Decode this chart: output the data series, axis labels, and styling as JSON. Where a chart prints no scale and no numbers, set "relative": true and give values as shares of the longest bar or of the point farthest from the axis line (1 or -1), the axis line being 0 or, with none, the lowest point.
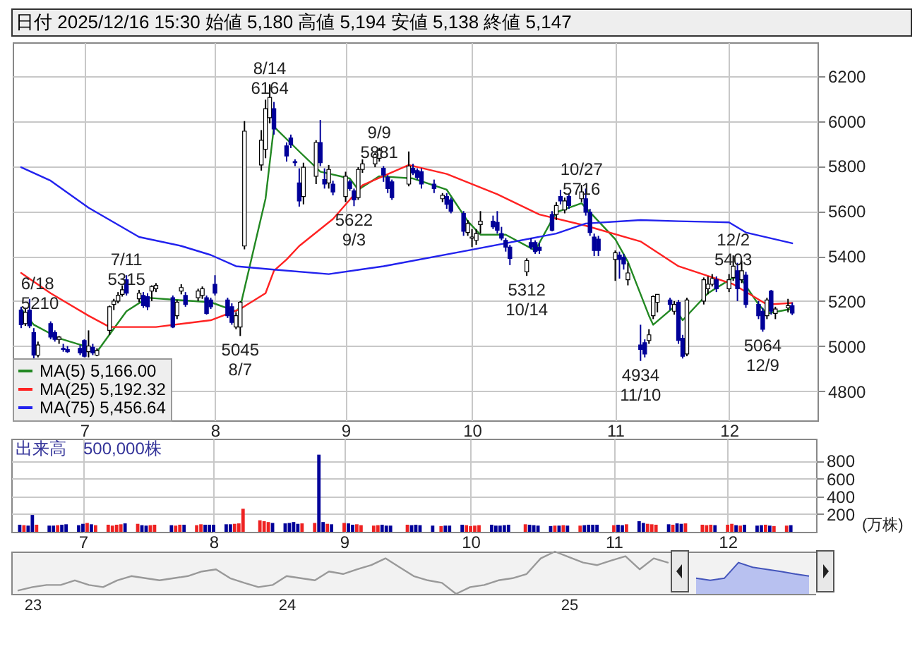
{
  "chart_data": [
    {
      "type": "candlestick",
      "title": "日付 2025/12/16 15:30 始値 5,180 高値 5,194 安値 5,138 終値 5,147",
      "xlim": [
        "2025-06-14",
        "2025-12-22"
      ],
      "ylim": [
        4670,
        6350
      ],
      "yticks": [
        4800,
        5000,
        5200,
        5400,
        5600,
        5800,
        6000,
        6200
      ],
      "xticks": [
        {
          "value": "2025-07-01",
          "label": "7"
        },
        {
          "value": "2025-08-01",
          "label": "8"
        },
        {
          "value": "2025-09-01",
          "label": "9"
        },
        {
          "value": "2025-10-01",
          "label": "10"
        },
        {
          "value": "2025-11-04",
          "label": "11"
        },
        {
          "value": "2025-12-01",
          "label": "12"
        }
      ],
      "grid": true,
      "legend": "bottom left",
      "series": [
        {
          "type": "line",
          "name": "MA(5) 5,166.00",
          "color": "#228822",
          "x": [
            "2025-06-16",
            "2025-06-19",
            "2025-06-25",
            "2025-07-02",
            "2025-07-04",
            "2025-07-11",
            "2025-07-16",
            "2025-07-23",
            "2025-07-31",
            "2025-08-06",
            "2025-08-07",
            "2025-08-13",
            "2025-08-15",
            "2025-08-21",
            "2025-08-26",
            "2025-09-02",
            "2025-09-04",
            "2025-09-09",
            "2025-09-17",
            "2025-09-25",
            "2025-09-30",
            "2025-10-03",
            "2025-10-09",
            "2025-10-16",
            "2025-10-21",
            "2025-10-27",
            "2025-11-04",
            "2025-11-07",
            "2025-11-12",
            "2025-11-13",
            "2025-11-18",
            "2025-11-20",
            "2025-11-26",
            "2025-12-02",
            "2025-12-04",
            "2025-12-08",
            "2025-12-10",
            "2025-12-16"
          ],
          "values": [
            5165,
            5095,
            5035,
            4995,
            4975,
            5155,
            5215,
            5205,
            5195,
            5155,
            5175,
            5655,
            5975,
            5865,
            5775,
            5745,
            5695,
            5755,
            5745,
            5695,
            5555,
            5495,
            5495,
            5425,
            5595,
            5635,
            5475,
            5375,
            5135,
            5095,
            5175,
            5115,
            5235,
            5305,
            5295,
            5185,
            5145,
            5166
          ]
        },
        {
          "type": "line",
          "name": "MA(25) 5,192.32",
          "color": "#ff2222",
          "x": [
            "2025-06-16",
            "2025-06-23",
            "2025-07-02",
            "2025-07-07",
            "2025-07-18",
            "2025-07-31",
            "2025-08-07",
            "2025-08-13",
            "2025-08-15",
            "2025-08-18",
            "2025-08-21",
            "2025-08-29",
            "2025-09-05",
            "2025-09-16",
            "2025-09-25",
            "2025-10-07",
            "2025-10-17",
            "2025-10-28",
            "2025-11-10",
            "2025-11-19",
            "2025-12-02",
            "2025-12-10",
            "2025-12-16"
          ],
          "values": [
            5325,
            5235,
            5135,
            5085,
            5085,
            5115,
            5165,
            5235,
            5335,
            5385,
            5445,
            5565,
            5715,
            5805,
            5765,
            5675,
            5585,
            5535,
            5465,
            5355,
            5275,
            5185,
            5192
          ]
        },
        {
          "type": "line",
          "name": "MA(75) 5,456.64",
          "color": "#2222ee",
          "x": [
            "2025-06-16",
            "2025-06-23",
            "2025-07-02",
            "2025-07-14",
            "2025-07-24",
            "2025-07-31",
            "2025-08-06",
            "2025-08-15",
            "2025-08-28",
            "2025-09-10",
            "2025-09-30",
            "2025-10-21",
            "2025-10-28",
            "2025-11-10",
            "2025-11-19",
            "2025-12-01",
            "2025-12-05",
            "2025-12-16"
          ],
          "values": [
            5795,
            5735,
            5615,
            5485,
            5445,
            5405,
            5355,
            5340,
            5320,
            5355,
            5425,
            5500,
            5545,
            5560,
            5555,
            5550,
            5505,
            5457
          ]
        },
        {
          "type": "candlestick",
          "colors": [
            "#000099",
            "#ffffff",
            "#000099",
            "#000099",
            "#ffffff",
            "#000099",
            "#000099",
            "#ffffff",
            "#000099",
            "#000099",
            "#000099",
            "#000099",
            "#ffffff",
            "#000099",
            "#ffffff",
            "#ffffff",
            "#ffffff",
            "#ffffff",
            "#ffffff",
            "#000099",
            "#ffffff",
            "#000099",
            "#000099",
            "#ffffff",
            "#ffffff",
            "#000099",
            "#ffffff",
            "#ffffff",
            "#000099",
            "#ffffff",
            "#ffffff",
            "#000099",
            "#000099",
            "#000099",
            "#000099",
            "#000099",
            "#ffffff",
            "#ffffff",
            "#ffffff",
            "#ffffff",
            "#ffffff",
            "#ffffff",
            "#000099",
            "#000099",
            "#000099",
            "#000099",
            "#000099",
            "#ffffff",
            "#ffffff",
            "#000099",
            "#000099",
            "#ffffff",
            "#000099",
            "#ffffff",
            "#000099",
            "#000099",
            "#ffffff",
            "#ffffff",
            "#ffffff",
            "#ffffff",
            "#000099",
            "#000099",
            "#000099",
            "#ffffff",
            "#000099",
            "#000099",
            "#000099",
            "#000099",
            "#ffffff",
            "#000099",
            "#000099",
            "#000099",
            "#ffffff",
            "#ffffff",
            "#ffffff",
            "#ffffff",
            "#000099",
            "#000099",
            "#000099",
            "#000099",
            "#000099",
            "#ffffff",
            "#000099",
            "#000099",
            "#000099",
            "#000099",
            "#ffffff",
            "#000099",
            "#ffffff",
            "#000099",
            "#ffffff",
            "#000099",
            "#000099",
            "#000099",
            "#000099",
            "#ffffff",
            "#000099",
            "#000099",
            "#ffffff",
            "#000099",
            "#000099",
            "#ffffff",
            "#ffffff",
            "#ffffff",
            "#000099",
            "#ffffff",
            "#000099",
            "#000099",
            "#ffffff",
            "#ffffff",
            "#ffffff",
            "#ffffff",
            "#000099",
            "#ffffff",
            "#ffffff",
            "#000099",
            "#ffffff",
            "#000099",
            "#000099",
            "#000099",
            "#ffffff",
            "#000099",
            "#ffffff",
            "#ffffff",
            "#000099"
          ],
          "x": [
            "2025-06-16",
            "2025-06-17",
            "2025-06-18",
            "2025-06-19",
            "2025-06-20",
            "2025-06-23",
            "2025-06-24",
            "2025-06-25",
            "2025-06-26",
            "2025-06-27",
            "2025-06-30",
            "2025-07-01",
            "2025-07-02",
            "2025-07-03",
            "2025-07-04",
            "2025-07-07",
            "2025-07-08",
            "2025-07-09",
            "2025-07-10",
            "2025-07-11",
            "2025-07-14",
            "2025-07-15",
            "2025-07-16",
            "2025-07-17",
            "2025-07-18",
            "2025-07-22",
            "2025-07-23",
            "2025-07-24",
            "2025-07-25",
            "2025-07-28",
            "2025-07-29",
            "2025-07-30",
            "2025-07-31",
            "2025-08-01",
            "2025-08-04",
            "2025-08-05",
            "2025-08-06",
            "2025-08-07",
            "2025-08-08",
            "2025-08-12",
            "2025-08-13",
            "2025-08-14",
            "2025-08-15",
            "2025-08-18",
            "2025-08-19",
            "2025-08-20",
            "2025-08-21",
            "2025-08-22",
            "2025-08-25",
            "2025-08-26",
            "2025-08-27",
            "2025-08-28",
            "2025-08-29",
            "2025-09-01",
            "2025-09-02",
            "2025-09-03",
            "2025-09-04",
            "2025-09-05",
            "2025-09-08",
            "2025-09-09",
            "2025-09-10",
            "2025-09-11",
            "2025-09-12",
            "2025-09-16",
            "2025-09-17",
            "2025-09-18",
            "2025-09-19",
            "2025-09-22",
            "2025-09-24",
            "2025-09-25",
            "2025-09-26",
            "2025-09-29",
            "2025-09-30",
            "2025-10-01",
            "2025-10-02",
            "2025-10-03",
            "2025-10-06",
            "2025-10-07",
            "2025-10-08",
            "2025-10-09",
            "2025-10-10",
            "2025-10-14",
            "2025-10-15",
            "2025-10-16",
            "2025-10-17",
            "2025-10-20",
            "2025-10-21",
            "2025-10-22",
            "2025-10-23",
            "2025-10-24",
            "2025-10-27",
            "2025-10-28",
            "2025-10-29",
            "2025-10-30",
            "2025-10-31",
            "2025-11-04",
            "2025-11-05",
            "2025-11-06",
            "2025-11-07",
            "2025-11-10",
            "2025-11-11",
            "2025-11-12",
            "2025-11-13",
            "2025-11-14",
            "2025-11-17",
            "2025-11-18",
            "2025-11-19",
            "2025-11-20",
            "2025-11-21",
            "2025-11-25",
            "2025-11-26",
            "2025-11-27",
            "2025-11-28",
            "2025-12-01",
            "2025-12-02",
            "2025-12-03",
            "2025-12-04",
            "2025-12-05",
            "2025-12-08",
            "2025-12-09",
            "2025-12-10",
            "2025-12-11",
            "2025-12-12",
            "2025-12-15",
            "2025-12-16"
          ],
          "ohlc": [
            [
              5160,
              5175,
              5080,
              5095
            ],
            [
              5100,
              5170,
              5090,
              5150
            ],
            [
              5160,
              5210,
              5080,
              5090
            ],
            [
              5060,
              5080,
              4940,
              4960
            ],
            [
              4960,
              5020,
              4950,
              5005
            ],
            [
              5100,
              5110,
              5030,
              5040
            ],
            [
              5060,
              5070,
              5020,
              5030
            ],
            [
              5030,
              5045,
              5010,
              5040
            ],
            [
              4990,
              5010,
              4975,
              4985
            ],
            [
              4985,
              5000,
              4970,
              4975
            ],
            [
              4990,
              5005,
              4960,
              4970
            ],
            [
              5025,
              5030,
              4950,
              4955
            ],
            [
              4975,
              5070,
              4950,
              5000
            ],
            [
              4995,
              5010,
              4960,
              4970
            ],
            [
              4960,
              4990,
              4955,
              4980
            ],
            [
              5070,
              5180,
              5050,
              5175
            ],
            [
              5185,
              5210,
              5160,
              5200
            ],
            [
              5200,
              5240,
              5190,
              5225
            ],
            [
              5230,
              5270,
              5220,
              5250
            ],
            [
              5295,
              5315,
              5225,
              5235
            ],
            [
              5210,
              5250,
              5195,
              5235
            ],
            [
              5225,
              5240,
              5170,
              5180
            ],
            [
              5220,
              5235,
              5160,
              5175
            ],
            [
              5245,
              5270,
              5200,
              5265
            ],
            [
              5255,
              5280,
              5240,
              5270
            ],
            [
              5215,
              5225,
              5080,
              5085
            ],
            [
              5135,
              5205,
              5120,
              5195
            ],
            [
              5245,
              5275,
              5230,
              5260
            ],
            [
              5225,
              5240,
              5175,
              5185
            ],
            [
              5215,
              5255,
              5200,
              5245
            ],
            [
              5225,
              5265,
              5210,
              5255
            ],
            [
              5215,
              5225,
              5140,
              5145
            ],
            [
              5205,
              5215,
              5165,
              5175
            ],
            [
              5275,
              5315,
              5225,
              5235
            ],
            [
              5205,
              5215,
              5125,
              5135
            ],
            [
              5175,
              5190,
              5095,
              5105
            ],
            [
              5085,
              5150,
              5075,
              5135
            ],
            [
              5085,
              5200,
              5045,
              5195
            ],
            [
              5445,
              6000,
              5430,
              5955
            ],
            [
              5805,
              5960,
              5780,
              5915
            ],
            [
              5875,
              6095,
              5835,
              6055
            ],
            [
              6015,
              6164,
              5990,
              6105
            ],
            [
              6055,
              6085,
              5940,
              5965
            ],
            [
              5890,
              5905,
              5820,
              5845
            ],
            [
              5925,
              5940,
              5880,
              5895
            ],
            [
              5820,
              5830,
              5800,
              5815
            ],
            [
              5725,
              5790,
              5620,
              5645
            ],
            [
              5665,
              5815,
              5630,
              5795
            ],
            [
              5755,
              5915,
              5720,
              5905
            ],
            [
              5905,
              6005,
              5800,
              5815
            ],
            [
              5740,
              5790,
              5700,
              5720
            ],
            [
              5725,
              5805,
              5700,
              5785
            ],
            [
              5720,
              5735,
              5670,
              5685
            ],
            [
              5665,
              5775,
              5640,
              5755
            ],
            [
              5730,
              5740,
              5690,
              5700
            ],
            [
              5690,
              5700,
              5622,
              5650
            ],
            [
              5660,
              5795,
              5650,
              5785
            ],
            [
              5785,
              5830,
              5770,
              5810
            ],
            [
              5810,
              5860,
              5795,
              5850
            ],
            [
              5835,
              5881,
              5820,
              5870
            ],
            [
              5790,
              5800,
              5730,
              5760
            ],
            [
              5750,
              5760,
              5680,
              5700
            ],
            [
              5730,
              5740,
              5650,
              5660
            ],
            [
              5720,
              5865,
              5710,
              5800
            ],
            [
              5790,
              5810,
              5760,
              5770
            ],
            [
              5780,
              5790,
              5740,
              5750
            ],
            [
              5775,
              5790,
              5700,
              5720
            ],
            [
              5720,
              5740,
              5680,
              5700
            ],
            [
              5655,
              5680,
              5640,
              5670
            ],
            [
              5665,
              5680,
              5610,
              5630
            ],
            [
              5650,
              5660,
              5590,
              5600
            ],
            [
              5590,
              5600,
              5490,
              5510
            ],
            [
              5505,
              5560,
              5490,
              5545
            ],
            [
              5480,
              5520,
              5440,
              5485
            ],
            [
              5470,
              5520,
              5450,
              5500
            ],
            [
              5540,
              5600,
              5500,
              5555
            ],
            [
              5555,
              5580,
              5520,
              5530
            ],
            [
              5550,
              5600,
              5500,
              5515
            ],
            [
              5500,
              5530,
              5470,
              5480
            ],
            [
              5470,
              5480,
              5420,
              5440
            ],
            [
              5440,
              5450,
              5360,
              5390
            ],
            [
              5330,
              5390,
              5312,
              5380
            ],
            [
              5460,
              5480,
              5430,
              5440
            ],
            [
              5460,
              5470,
              5410,
              5420
            ],
            [
              5440,
              5460,
              5410,
              5425
            ],
            [
              5585,
              5600,
              5510,
              5515
            ],
            [
              5585,
              5640,
              5560,
              5625
            ],
            [
              5665,
              5695,
              5630,
              5645
            ],
            [
              5605,
              5660,
              5590,
              5645
            ],
            [
              5665,
              5680,
              5610,
              5625
            ],
            [
              5655,
              5716,
              5640,
              5685
            ],
            [
              5655,
              5700,
              5580,
              5595
            ],
            [
              5595,
              5610,
              5490,
              5505
            ],
            [
              5485,
              5500,
              5400,
              5425
            ],
            [
              5475,
              5490,
              5400,
              5425
            ],
            [
              5385,
              5425,
              5290,
              5415
            ],
            [
              5405,
              5420,
              5300,
              5385
            ],
            [
              5395,
              5410,
              5340,
              5365
            ],
            [
              5295,
              5370,
              5270,
              5325
            ],
            [
              5005,
              5095,
              4934,
              4985
            ],
            [
              5015,
              5030,
              4950,
              4965
            ],
            [
              5025,
              5075,
              5010,
              5050
            ],
            [
              5135,
              5225,
              5120,
              5220
            ],
            [
              5195,
              5230,
              5150,
              5230
            ],
            [
              5205,
              5215,
              5160,
              5185
            ],
            [
              5155,
              5200,
              5140,
              5185
            ],
            [
              5195,
              5205,
              5010,
              5025
            ],
            [
              5035,
              5050,
              4945,
              4955
            ],
            [
              4965,
              5215,
              4955,
              5205
            ],
            [
              5200,
              5305,
              5185,
              5295
            ],
            [
              5255,
              5310,
              5230,
              5275
            ],
            [
              5275,
              5320,
              5265,
              5300
            ],
            [
              5295,
              5310,
              5240,
              5255
            ],
            [
              5255,
              5320,
              5240,
              5295
            ],
            [
              5305,
              5403,
              5290,
              5355
            ],
            [
              5335,
              5370,
              5200,
              5255
            ],
            [
              5295,
              5380,
              5280,
              5335
            ],
            [
              5315,
              5330,
              5170,
              5185
            ],
            [
              5185,
              5200,
              5120,
              5135
            ],
            [
              5155,
              5170,
              5064,
              5075
            ],
            [
              5135,
              5215,
              5120,
              5205
            ],
            [
              5245,
              5250,
              5140,
              5155
            ],
            [
              5145,
              5175,
              5120,
              5165
            ],
            [
              5170,
              5210,
              5150,
              5180
            ],
            [
              5180,
              5194,
              5138,
              5147
            ]
          ]
        }
      ],
      "annotations": [
        {
          "text": "6/18\n5210",
          "x": "2025-06-18",
          "y": 5210
        },
        {
          "text": "7/11\n5315",
          "x": "2025-07-11",
          "y": 5315
        },
        {
          "text": "5045\n8/7",
          "x": "2025-08-07",
          "y": 5045
        },
        {
          "text": "8/14\n6164",
          "x": "2025-08-14",
          "y": 6164
        },
        {
          "text": "5622\n9/3",
          "x": "2025-09-03",
          "y": 5622
        },
        {
          "text": "9/9\n5881",
          "x": "2025-09-09",
          "y": 5881
        },
        {
          "text": "5312\n10/14",
          "x": "2025-10-14",
          "y": 5312
        },
        {
          "text": "10/27\n5716",
          "x": "2025-10-27",
          "y": 5716
        },
        {
          "text": "4934\n11/10",
          "x": "2025-11-10",
          "y": 4934
        },
        {
          "text": "12/2\n5403",
          "x": "2025-12-02",
          "y": 5403
        },
        {
          "text": "5064\n12/9",
          "x": "2025-12-09",
          "y": 5064
        }
      ]
    },
    {
      "type": "bar",
      "ylabel": "(万株)",
      "xlim": [
        "2025-06-14",
        "2025-12-22"
      ],
      "ylim": [
        0,
        1050
      ],
      "yticks": [
        200,
        400,
        600,
        800
      ],
      "xticks": [
        {
          "value": "2025-07-01",
          "label": "7"
        },
        {
          "value": "2025-08-01",
          "label": "8"
        },
        {
          "value": "2025-09-01",
          "label": "9"
        },
        {
          "value": "2025-10-01",
          "label": "10"
        },
        {
          "value": "2025-11-04",
          "label": "11"
        },
        {
          "value": "2025-12-01",
          "label": "12"
        }
      ],
      "grid": true,
      "annotations": [
        "出来高　500,000株"
      ],
      "x": [
        "2025-06-16",
        "2025-06-17",
        "2025-06-18",
        "2025-06-19",
        "2025-06-20",
        "2025-06-23",
        "2025-06-24",
        "2025-06-25",
        "2025-06-26",
        "2025-06-27",
        "2025-06-30",
        "2025-07-01",
        "2025-07-02",
        "2025-07-03",
        "2025-07-04",
        "2025-07-07",
        "2025-07-08",
        "2025-07-09",
        "2025-07-10",
        "2025-07-11",
        "2025-07-14",
        "2025-07-15",
        "2025-07-16",
        "2025-07-17",
        "2025-07-18",
        "2025-07-22",
        "2025-07-23",
        "2025-07-24",
        "2025-07-25",
        "2025-07-28",
        "2025-07-29",
        "2025-07-30",
        "2025-07-31",
        "2025-08-01",
        "2025-08-04",
        "2025-08-05",
        "2025-08-06",
        "2025-08-07",
        "2025-08-08",
        "2025-08-12",
        "2025-08-13",
        "2025-08-14",
        "2025-08-15",
        "2025-08-18",
        "2025-08-19",
        "2025-08-20",
        "2025-08-21",
        "2025-08-22",
        "2025-08-25",
        "2025-08-26",
        "2025-08-27",
        "2025-08-28",
        "2025-08-29",
        "2025-09-01",
        "2025-09-02",
        "2025-09-03",
        "2025-09-04",
        "2025-09-05",
        "2025-09-08",
        "2025-09-09",
        "2025-09-10",
        "2025-09-11",
        "2025-09-12",
        "2025-09-16",
        "2025-09-17",
        "2025-09-18",
        "2025-09-19",
        "2025-09-22",
        "2025-09-24",
        "2025-09-25",
        "2025-09-26",
        "2025-09-29",
        "2025-09-30",
        "2025-10-01",
        "2025-10-02",
        "2025-10-03",
        "2025-10-06",
        "2025-10-07",
        "2025-10-08",
        "2025-10-09",
        "2025-10-10",
        "2025-10-14",
        "2025-10-15",
        "2025-10-16",
        "2025-10-17",
        "2025-10-20",
        "2025-10-21",
        "2025-10-22",
        "2025-10-23",
        "2025-10-24",
        "2025-10-27",
        "2025-10-28",
        "2025-10-29",
        "2025-10-30",
        "2025-10-31",
        "2025-11-04",
        "2025-11-05",
        "2025-11-06",
        "2025-11-07",
        "2025-11-10",
        "2025-11-11",
        "2025-11-12",
        "2025-11-13",
        "2025-11-14",
        "2025-11-17",
        "2025-11-18",
        "2025-11-19",
        "2025-11-20",
        "2025-11-21",
        "2025-11-25",
        "2025-11-26",
        "2025-11-27",
        "2025-11-28",
        "2025-12-01",
        "2025-12-02",
        "2025-12-03",
        "2025-12-04",
        "2025-12-05",
        "2025-12-08",
        "2025-12-09",
        "2025-12-10",
        "2025-12-11",
        "2025-12-12",
        "2025-12-15",
        "2025-12-16"
      ],
      "values": [
        80,
        75,
        70,
        190,
        80,
        70,
        70,
        75,
        80,
        85,
        75,
        90,
        100,
        85,
        75,
        80,
        70,
        80,
        85,
        95,
        90,
        75,
        70,
        75,
        80,
        75,
        70,
        80,
        80,
        75,
        85,
        80,
        80,
        80,
        85,
        85,
        90,
        95,
        260,
        130,
        120,
        110,
        100,
        95,
        100,
        110,
        90,
        95,
        100,
        870,
        110,
        90,
        85,
        100,
        95,
        80,
        85,
        75,
        70,
        75,
        80,
        70,
        70,
        80,
        75,
        80,
        75,
        70,
        65,
        70,
        70,
        80,
        75,
        65,
        70,
        75,
        80,
        70,
        70,
        75,
        80,
        85,
        80,
        75,
        70,
        65,
        70,
        70,
        75,
        70,
        70,
        75,
        80,
        80,
        80,
        75,
        80,
        75,
        85,
        120,
        100,
        90,
        85,
        80,
        85,
        80,
        95,
        90,
        95,
        80,
        75,
        80,
        75,
        80,
        90,
        75,
        70,
        80,
        70,
        75,
        80,
        70,
        65,
        70,
        75
      ],
      "colors": [
        "#000099",
        "#ee2222",
        "#000099",
        "#000099",
        "#ee2222",
        "#000099",
        "#000099",
        "#ee2222",
        "#000099",
        "#000099",
        "#000099",
        "#000099",
        "#ee2222",
        "#000099",
        "#ee2222",
        "#ee2222",
        "#ee2222",
        "#ee2222",
        "#ee2222",
        "#000099",
        "#ee2222",
        "#000099",
        "#000099",
        "#ee2222",
        "#ee2222",
        "#000099",
        "#ee2222",
        "#ee2222",
        "#000099",
        "#ee2222",
        "#ee2222",
        "#000099",
        "#000099",
        "#000099",
        "#000099",
        "#000099",
        "#ee2222",
        "#ee2222",
        "#ee2222",
        "#ee2222",
        "#ee2222",
        "#ee2222",
        "#000099",
        "#000099",
        "#000099",
        "#000099",
        "#000099",
        "#ee2222",
        "#ee2222",
        "#000099",
        "#000099",
        "#ee2222",
        "#000099",
        "#ee2222",
        "#000099",
        "#000099",
        "#ee2222",
        "#ee2222",
        "#ee2222",
        "#ee2222",
        "#000099",
        "#000099",
        "#000099",
        "#ee2222",
        "#000099",
        "#000099",
        "#000099",
        "#000099",
        "#ee2222",
        "#000099",
        "#000099",
        "#000099",
        "#ee2222",
        "#ee2222",
        "#ee2222",
        "#ee2222",
        "#000099",
        "#000099",
        "#000099",
        "#000099",
        "#000099",
        "#ee2222",
        "#000099",
        "#000099",
        "#000099",
        "#000099",
        "#ee2222",
        "#000099",
        "#ee2222",
        "#000099",
        "#ee2222",
        "#000099",
        "#000099",
        "#000099",
        "#000099",
        "#ee2222",
        "#000099",
        "#000099",
        "#ee2222",
        "#000099",
        "#000099",
        "#ee2222",
        "#ee2222",
        "#ee2222",
        "#000099",
        "#ee2222",
        "#000099",
        "#000099",
        "#ee2222",
        "#ee2222",
        "#ee2222",
        "#ee2222",
        "#000099",
        "#ee2222",
        "#ee2222",
        "#000099",
        "#ee2222",
        "#000099",
        "#000099",
        "#000099",
        "#ee2222",
        "#000099",
        "#ee2222",
        "#ee2222",
        "#000099"
      ]
    },
    {
      "type": "line",
      "relative": true,
      "categories": [
        null,
        "23",
        null,
        null,
        null,
        null,
        null,
        null,
        null,
        null,
        null,
        null,
        null,
        null,
        null,
        null,
        null,
        null,
        null,
        "24",
        null,
        null,
        null,
        null,
        null,
        null,
        null,
        null,
        null,
        null,
        null,
        null,
        null,
        null,
        null,
        null,
        null,
        null,
        null,
        "25",
        null,
        null,
        null,
        null,
        null,
        null,
        null,
        null,
        null,
        null,
        null,
        null,
        null,
        null,
        null,
        null,
        null
      ],
      "series": [
        {
          "color": "#999999",
          "values": [
            0.08,
            0.16,
            0.21,
            0.21,
            0.32,
            0.21,
            0.16,
            0.32,
            0.42,
            0.37,
            0.32,
            0.37,
            0.42,
            0.53,
            0.58,
            0.37,
            0.26,
            0.16,
            0.21,
            0.42,
            0.37,
            0.32,
            0.53,
            0.47,
            0.58,
            0.68,
            0.84,
            0.63,
            0.42,
            0.32,
            0.26,
            0,
            0.16,
            0.21,
            0.32,
            0.37,
            0.47,
            0.84,
            1,
            0.87,
            0.74,
            0.68,
            0.79,
            0.89,
            0.58,
            0.84,
            0.74,
            null,
            null,
            null,
            null,
            null,
            null,
            null,
            null,
            null,
            null
          ]
        },
        {
          "type": "area",
          "color": "#8899ee",
          "values": [
            null,
            null,
            null,
            null,
            null,
            null,
            null,
            null,
            null,
            null,
            null,
            null,
            null,
            null,
            null,
            null,
            null,
            null,
            null,
            null,
            null,
            null,
            null,
            null,
            null,
            null,
            null,
            null,
            null,
            null,
            null,
            null,
            null,
            null,
            null,
            null,
            null,
            null,
            null,
            null,
            null,
            null,
            null,
            null,
            null,
            null,
            null,
            null,
            0.37,
            0.32,
            0.37,
            0.74,
            0.63,
            0.58,
            0.53,
            0.47,
            0.42
          ]
        }
      ]
    }
  ]
}
